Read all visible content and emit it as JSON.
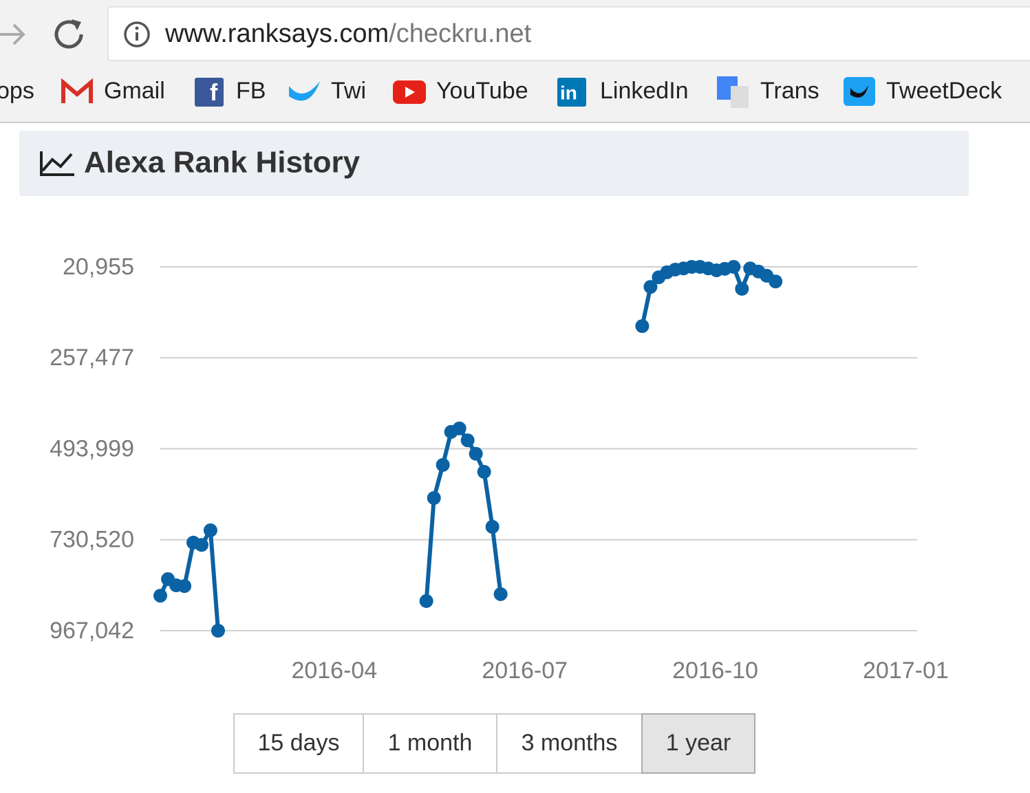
{
  "browser": {
    "url_host": "www.ranksays.com",
    "url_path": "/checkru.net",
    "bookmarks": [
      "ops",
      "Gmail",
      "FB",
      "Twi",
      "YouTube",
      "LinkedIn",
      "Trans",
      "TweetDeck"
    ]
  },
  "panel_title": "Alexa Rank History",
  "chart_data": {
    "type": "line",
    "color": "#0b62a4",
    "grid": true,
    "x": [
      0.26,
      0.38,
      0.51,
      0.64,
      0.78,
      0.91,
      1.05,
      1.17,
      2.8,
      4.45,
      4.57,
      4.71,
      4.84,
      4.97,
      5.1,
      5.23,
      5.36,
      5.49,
      5.62,
      6.7,
      7.85,
      7.98,
      8.11,
      8.24,
      8.37,
      8.5,
      8.63,
      8.76,
      8.89,
      9.02,
      9.15,
      9.29,
      9.42,
      9.55,
      9.68,
      9.81,
      9.95
    ],
    "values": [
      876000,
      833000,
      849000,
      851000,
      738000,
      744000,
      706000,
      967042,
      null,
      890000,
      622000,
      536000,
      450000,
      441000,
      472000,
      507000,
      554000,
      697000,
      872000,
      null,
      175000,
      73000,
      48000,
      35000,
      28000,
      25000,
      21000,
      21000,
      25000,
      30000,
      26000,
      21000,
      78000,
      25000,
      33000,
      44000,
      59000
    ],
    "xlim": [
      0.26,
      12.18
    ],
    "xticks": [
      {
        "value": 3,
        "label": "2016-04"
      },
      {
        "value": 6,
        "label": "2016-07"
      },
      {
        "value": 9,
        "label": "2016-10"
      },
      {
        "value": 12,
        "label": "2017-01"
      }
    ],
    "ylim": [
      967042,
      20955
    ],
    "yticks": [
      {
        "value": 20955,
        "label": "20,955"
      },
      {
        "value": 257477,
        "label": "257,477"
      },
      {
        "value": 493999,
        "label": "493,999"
      },
      {
        "value": 730520,
        "label": "730,520"
      },
      {
        "value": 967042,
        "label": "967,042"
      }
    ]
  },
  "range_buttons": [
    "15 days",
    "1 month",
    "3 months",
    "1 year"
  ],
  "active_button": 3
}
